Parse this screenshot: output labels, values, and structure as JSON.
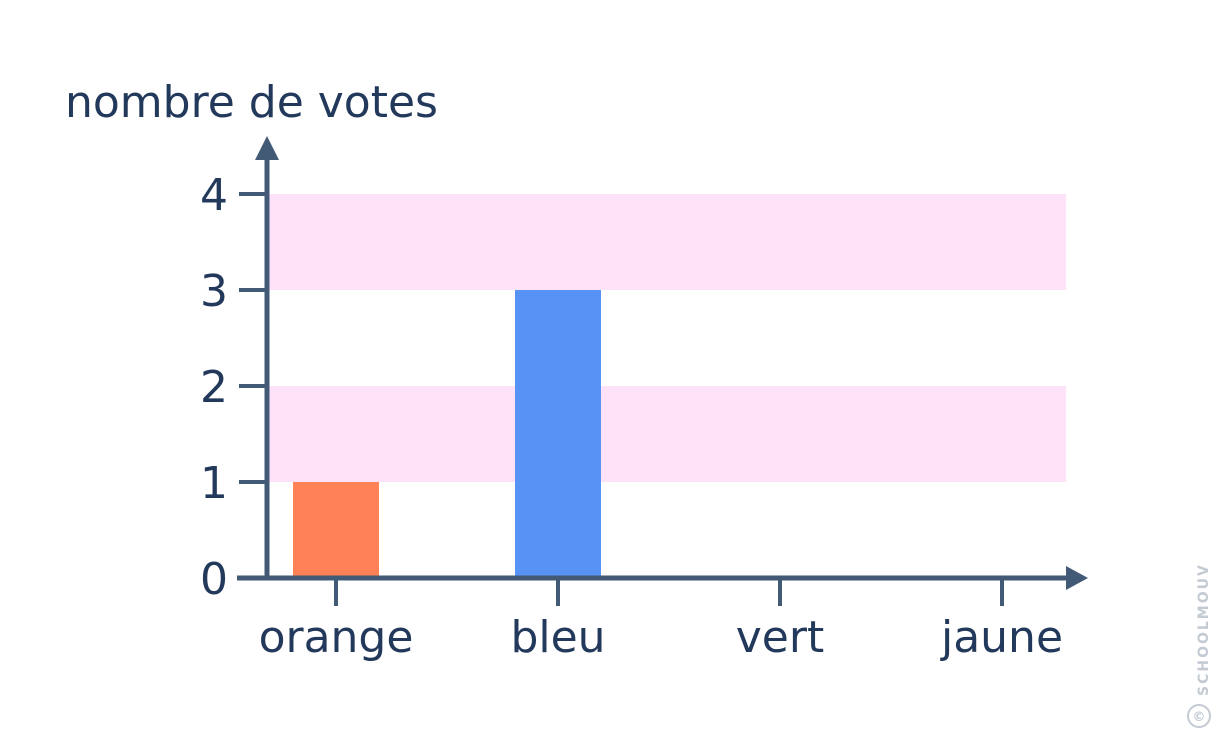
{
  "chart_data": {
    "type": "bar",
    "ylabel": "nombre de votes",
    "xlabel": "",
    "categories": [
      "orange",
      "bleu",
      "vert",
      "jaune"
    ],
    "values": [
      1,
      3,
      0,
      0
    ],
    "bar_colors": [
      "#ff8256",
      "#5793f4",
      "#5793f4",
      "#5793f4"
    ],
    "ylim": [
      0,
      4
    ],
    "yticks": [
      "0",
      "1",
      "2",
      "3",
      "4"
    ],
    "band_color": "#fee3f8",
    "axis_color": "#435a77",
    "text_color": "#23395b"
  },
  "watermark": "SCHOOLMOUV",
  "watermark_symbol": "©"
}
